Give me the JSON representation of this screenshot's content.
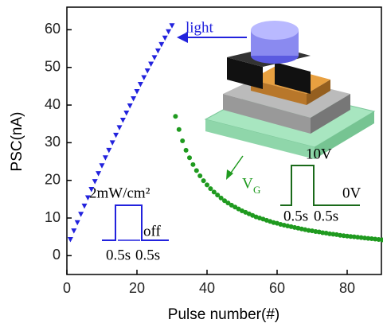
{
  "chart_data": {
    "type": "scatter",
    "x_label": "Pulse number(#)",
    "y_label": "PSC(nA)",
    "xlim": [
      0,
      90
    ],
    "ylim": [
      -5,
      66
    ],
    "xticks": [
      0,
      20,
      40,
      60,
      80
    ],
    "yticks": [
      0,
      10,
      20,
      30,
      40,
      50,
      60
    ],
    "series": [
      {
        "color": "#2222dd",
        "marker": "triangle-down",
        "x": [
          1,
          2,
          3,
          4,
          5,
          6,
          7,
          8,
          9,
          10,
          11,
          12,
          13,
          14,
          15,
          16,
          17,
          18,
          19,
          20,
          21,
          22,
          23,
          24,
          25,
          26,
          27,
          28,
          29,
          30
        ],
        "values": [
          4.3,
          6.6,
          8.8,
          11.0,
          13.2,
          15.4,
          17.6,
          19.7,
          21.8,
          23.9,
          26.0,
          28.0,
          30.0,
          32.0,
          34.0,
          36.0,
          37.9,
          39.8,
          41.7,
          43.6,
          45.5,
          47.3,
          49.1,
          50.9,
          52.6,
          54.4,
          56.1,
          57.8,
          59.5,
          61.1
        ]
      },
      {
        "color": "#1f9a1f",
        "marker": "circle",
        "x": [
          31,
          32,
          33,
          34,
          35,
          36,
          37,
          38,
          39,
          40,
          41,
          42,
          43,
          44,
          45,
          46,
          47,
          48,
          49,
          50,
          51,
          52,
          53,
          54,
          55,
          56,
          57,
          58,
          59,
          60,
          61,
          62,
          63,
          64,
          65,
          66,
          67,
          68,
          69,
          70,
          71,
          72,
          73,
          74,
          75,
          76,
          77,
          78,
          79,
          80,
          81,
          82,
          83,
          84,
          85,
          86,
          87,
          88,
          89,
          90
        ],
        "values": [
          37,
          33.5,
          30.5,
          28,
          26,
          24.2,
          22.6,
          21.2,
          19.9,
          18.8,
          17.8,
          16.9,
          16.1,
          15.3,
          14.6,
          14.0,
          13.4,
          12.9,
          12.4,
          11.9,
          11.5,
          11.1,
          10.7,
          10.3,
          10.0,
          9.7,
          9.4,
          9.1,
          8.8,
          8.6,
          8.3,
          8.1,
          7.9,
          7.7,
          7.5,
          7.3,
          7.1,
          6.9,
          6.7,
          6.6,
          6.4,
          6.3,
          6.1,
          6.0,
          5.8,
          5.7,
          5.6,
          5.4,
          5.3,
          5.2,
          5.1,
          5.0,
          4.9,
          4.8,
          4.7,
          4.6,
          4.5,
          4.4,
          4.3,
          4.2
        ]
      }
    ],
    "annotations": [
      "light",
      "2mW/cm²",
      "off",
      "0.5s",
      "0.5s",
      "V",
      "G",
      "10V",
      "0V",
      "0.5s",
      "0.5s"
    ]
  }
}
